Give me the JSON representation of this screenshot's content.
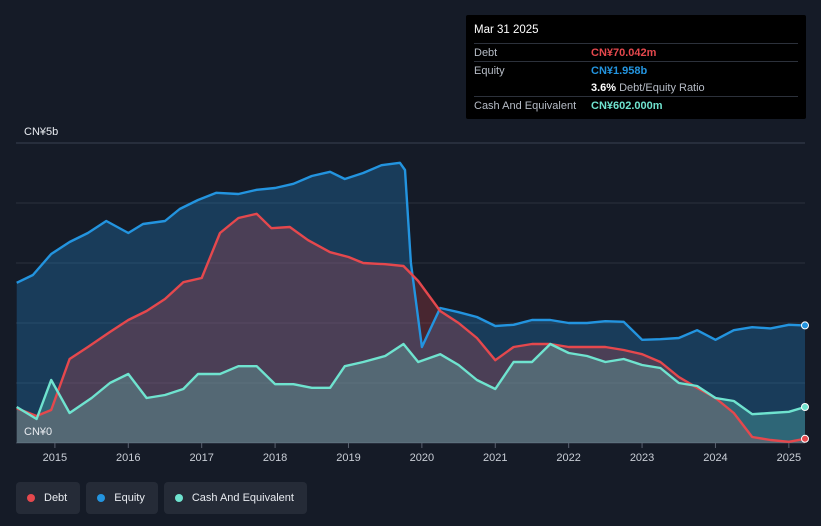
{
  "tooltip": {
    "date": "Mar 31 2025",
    "rows": [
      {
        "label": "Debt",
        "value": "CN¥70.042m",
        "color": "#e5484d"
      },
      {
        "label": "Equity",
        "value": "CN¥1.958b",
        "color": "#2394df"
      },
      {
        "label": "",
        "value": "3.6%",
        "sub": "Debt/Equity Ratio",
        "color": "#ffffff"
      },
      {
        "label": "Cash And Equivalent",
        "value": "CN¥602.000m",
        "color": "#6fe3cf"
      }
    ]
  },
  "legend": [
    {
      "label": "Debt",
      "color": "#e5484d"
    },
    {
      "label": "Equity",
      "color": "#2394df"
    },
    {
      "label": "Cash And Equivalent",
      "color": "#6fe3cf"
    }
  ],
  "chart_data": {
    "type": "area",
    "y_unit": "CN¥ billions",
    "ylim": [
      0,
      5
    ],
    "y_tick_labels": [
      {
        "value": 5,
        "label": "CN¥5b"
      },
      {
        "value": 0,
        "label": "CN¥0"
      }
    ],
    "x_tick_labels": [
      "2015",
      "2016",
      "2017",
      "2018",
      "2019",
      "2020",
      "2021",
      "2022",
      "2023",
      "2024",
      "2025"
    ],
    "x_tick_values": [
      2015,
      2016,
      2017,
      2018,
      2019,
      2020,
      2021,
      2022,
      2023,
      2024,
      2025
    ],
    "xlim": [
      2014.47,
      2025.22
    ],
    "grid": true,
    "series": [
      {
        "name": "Equity",
        "color": "#2394df",
        "x": [
          2014.48,
          2014.7,
          2014.95,
          2015.2,
          2015.45,
          2015.7,
          2016.0,
          2016.2,
          2016.5,
          2016.7,
          2016.95,
          2017.2,
          2017.5,
          2017.75,
          2018.0,
          2018.25,
          2018.5,
          2018.75,
          2018.95,
          2019.2,
          2019.45,
          2019.7,
          2019.77,
          2019.85,
          2020.0,
          2020.25,
          2020.5,
          2020.75,
          2021.0,
          2021.25,
          2021.5,
          2021.75,
          2022.0,
          2022.25,
          2022.5,
          2022.75,
          2023.0,
          2023.25,
          2023.5,
          2023.75,
          2024.0,
          2024.25,
          2024.5,
          2024.75,
          2025.0,
          2025.22
        ],
        "values": [
          2.67,
          2.8,
          3.15,
          3.35,
          3.5,
          3.7,
          3.5,
          3.65,
          3.7,
          3.9,
          4.05,
          4.17,
          4.15,
          4.22,
          4.25,
          4.32,
          4.45,
          4.52,
          4.4,
          4.5,
          4.63,
          4.67,
          4.55,
          3.0,
          1.6,
          2.25,
          2.18,
          2.1,
          1.95,
          1.97,
          2.05,
          2.05,
          2.0,
          2.0,
          2.03,
          2.02,
          1.72,
          1.73,
          1.75,
          1.88,
          1.72,
          1.88,
          1.93,
          1.91,
          1.97,
          1.96
        ]
      },
      {
        "name": "Debt",
        "color": "#e5484d",
        "x": [
          2014.48,
          2014.75,
          2014.95,
          2015.2,
          2015.45,
          2015.75,
          2016.0,
          2016.25,
          2016.5,
          2016.75,
          2017.0,
          2017.25,
          2017.5,
          2017.75,
          2017.95,
          2018.2,
          2018.45,
          2018.75,
          2019.0,
          2019.2,
          2019.5,
          2019.75,
          2019.95,
          2020.25,
          2020.5,
          2020.75,
          2021.0,
          2021.25,
          2021.5,
          2021.75,
          2022.0,
          2022.25,
          2022.5,
          2022.75,
          2023.0,
          2023.25,
          2023.5,
          2023.75,
          2024.0,
          2024.25,
          2024.5,
          2024.75,
          2025.0,
          2025.22
        ],
        "values": [
          0.58,
          0.45,
          0.55,
          1.4,
          1.6,
          1.85,
          2.05,
          2.2,
          2.4,
          2.68,
          2.75,
          3.5,
          3.75,
          3.82,
          3.58,
          3.6,
          3.38,
          3.18,
          3.1,
          3.0,
          2.98,
          2.95,
          2.7,
          2.2,
          2.0,
          1.75,
          1.38,
          1.6,
          1.65,
          1.65,
          1.6,
          1.6,
          1.6,
          1.55,
          1.48,
          1.35,
          1.1,
          0.92,
          0.75,
          0.5,
          0.1,
          0.05,
          0.02,
          0.07
        ]
      },
      {
        "name": "Cash And Equivalent",
        "color": "#6fe3cf",
        "x": [
          2014.48,
          2014.75,
          2014.95,
          2015.2,
          2015.5,
          2015.75,
          2016.0,
          2016.25,
          2016.5,
          2016.75,
          2016.95,
          2017.25,
          2017.5,
          2017.75,
          2018.0,
          2018.25,
          2018.5,
          2018.75,
          2018.95,
          2019.2,
          2019.5,
          2019.75,
          2019.95,
          2020.25,
          2020.5,
          2020.75,
          2021.0,
          2021.25,
          2021.5,
          2021.75,
          2022.0,
          2022.25,
          2022.5,
          2022.75,
          2023.0,
          2023.25,
          2023.5,
          2023.75,
          2024.0,
          2024.25,
          2024.5,
          2024.75,
          2025.0,
          2025.22
        ],
        "values": [
          0.6,
          0.4,
          1.05,
          0.5,
          0.75,
          1.0,
          1.15,
          0.75,
          0.8,
          0.9,
          1.15,
          1.15,
          1.28,
          1.28,
          0.98,
          0.98,
          0.92,
          0.92,
          1.28,
          1.35,
          1.45,
          1.65,
          1.35,
          1.48,
          1.3,
          1.05,
          0.9,
          1.35,
          1.35,
          1.65,
          1.5,
          1.45,
          1.35,
          1.4,
          1.3,
          1.25,
          1.0,
          0.95,
          0.75,
          0.7,
          0.48,
          0.5,
          0.52,
          0.6
        ]
      }
    ]
  }
}
